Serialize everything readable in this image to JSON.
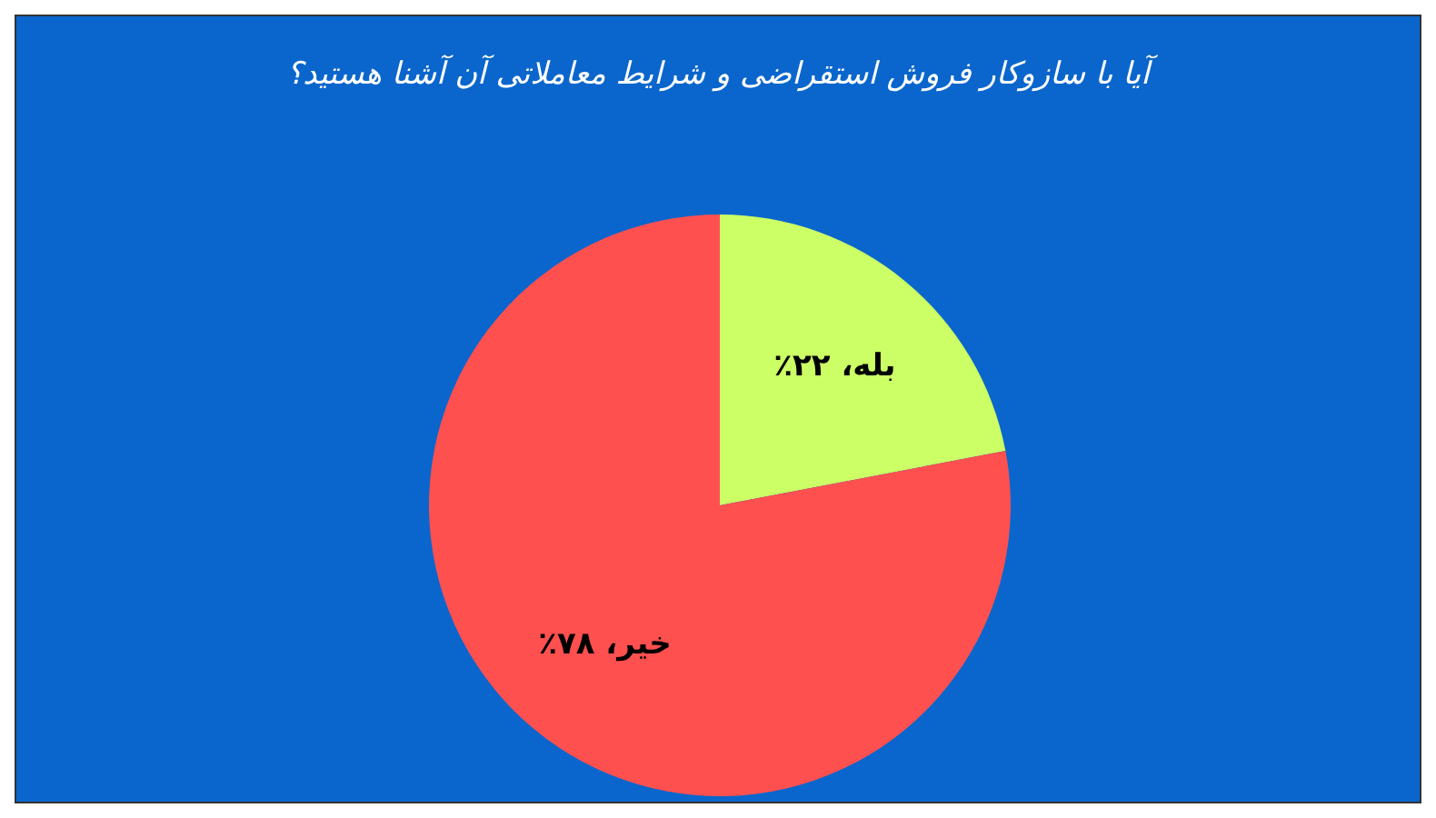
{
  "chart_data": {
    "type": "pie",
    "title": "آیا با سازوکار فروش استقراضی و شرایط معاملاتی آن آشنا هستید؟",
    "categories": [
      "بله",
      "خیر"
    ],
    "values": [
      22,
      78
    ],
    "colors": [
      "#ccff66",
      "#ff5050"
    ],
    "value_labels": [
      "۲۲٪",
      "۷۸٪"
    ]
  }
}
